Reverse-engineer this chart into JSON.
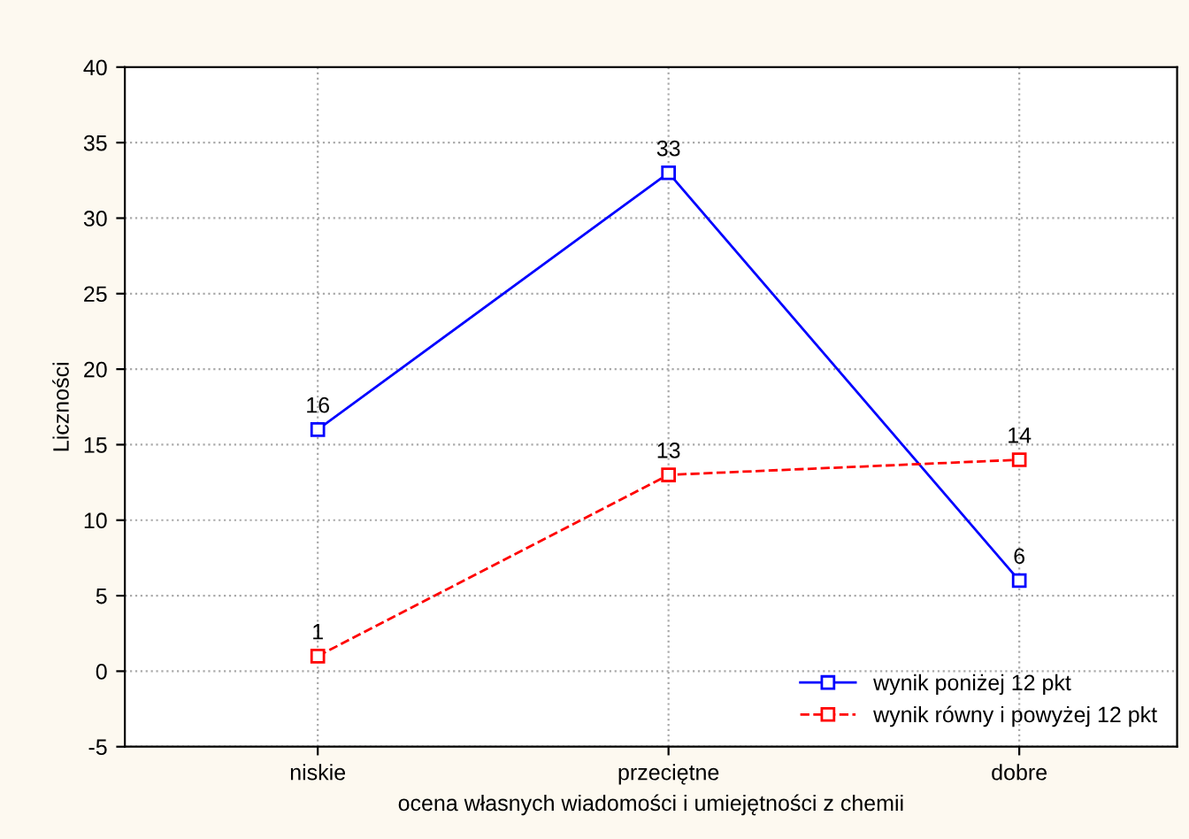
{
  "chart_data": {
    "type": "line",
    "xlabel": "ocena własnych wiadomości i umiejętności z chemii",
    "ylabel": "Liczności",
    "categories": [
      "niskie",
      "przeciętne",
      "dobre"
    ],
    "series": [
      {
        "name": "wynik poniżej 12 pkt",
        "color": "#0000ff",
        "values": [
          16,
          33,
          6
        ],
        "line_style": "solid"
      },
      {
        "name": "wynik równy i powyżej 12 pkt",
        "color": "#ff0000",
        "values": [
          1,
          13,
          14
        ],
        "line_style": "dashed"
      }
    ],
    "ylim": [
      -5,
      40
    ],
    "yticks": [
      {
        "value": -5,
        "label": "-5"
      },
      0,
      5,
      10,
      15,
      20,
      25,
      30,
      35,
      40
    ],
    "grid": true,
    "legend": "bottom right",
    "marker": "square",
    "data_labels": true
  }
}
